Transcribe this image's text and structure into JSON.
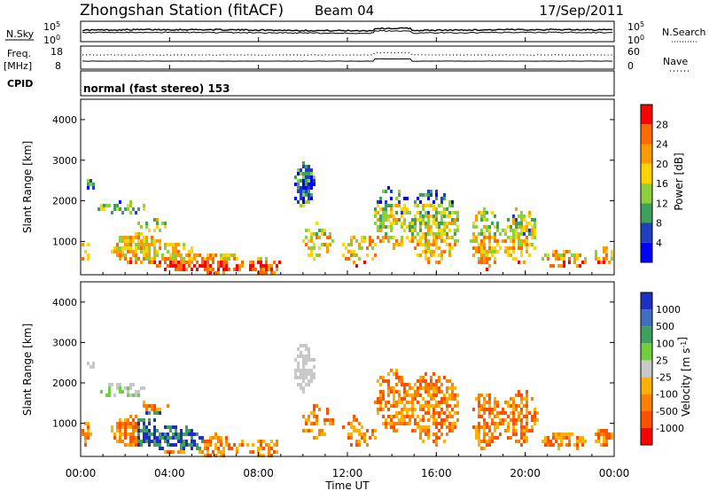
{
  "header": {
    "station": "Zhongshan Station (fitACF)",
    "beam": "Beam 04",
    "date": "17/Sep/2011"
  },
  "strip_panels": {
    "nsky_label": "N.Sky",
    "nsky_ticks": [
      "10^5",
      "10^0"
    ],
    "nsearch_label": "N.Search",
    "nsearch_ticks": [
      "10^5",
      "10^0"
    ],
    "freq_label": "Freq.",
    "freq_unit": "[MHz]",
    "freq_ticks": [
      "18",
      "8"
    ],
    "nave_label": "Nave",
    "nave_ticks": [
      "60",
      "0"
    ],
    "cpid_label": "CPID",
    "cpid_text": "normal (fast stereo) 153"
  },
  "chart_data": [
    {
      "type": "heatmap",
      "name": "power",
      "ylabel": "Slant Range [km]",
      "yticks": [
        "4000",
        "3000",
        "2000",
        "1000"
      ],
      "ylim": [
        180,
        4500
      ],
      "xlim_hours": [
        0,
        24
      ],
      "colorbar": {
        "label": "Power [dB]",
        "ticks": [
          "28",
          "24",
          "20",
          "16",
          "12",
          "8",
          "4"
        ],
        "colors": [
          "#ff0000",
          "#ff6a00",
          "#ff9a00",
          "#ffd400",
          "#8ccf3f",
          "#3f9f5f",
          "#1f3fbf",
          "#0000ff"
        ]
      }
    },
    {
      "type": "heatmap",
      "name": "velocity",
      "ylabel": "Slant Range [km]",
      "yticks": [
        "4000",
        "3000",
        "2000",
        "1000"
      ],
      "ylim": [
        180,
        4500
      ],
      "xlim_hours": [
        0,
        24
      ],
      "colorbar": {
        "label": "Velocity [m s^-1]",
        "ticks": [
          "1000",
          "500",
          "100",
          "25",
          "-25",
          "-100",
          "-500",
          "-1000"
        ],
        "colors": [
          "#1f2fbf",
          "#3f6fbf",
          "#3f9f5f",
          "#6fcf3f",
          "#c8c8c8",
          "#ffb000",
          "#ff8000",
          "#ff5000",
          "#ff0000"
        ]
      }
    }
  ],
  "xaxis": {
    "ticks": [
      "00:00",
      "04:00",
      "08:00",
      "12:00",
      "16:00",
      "20:00",
      "00:00"
    ],
    "label": "Time UT"
  }
}
